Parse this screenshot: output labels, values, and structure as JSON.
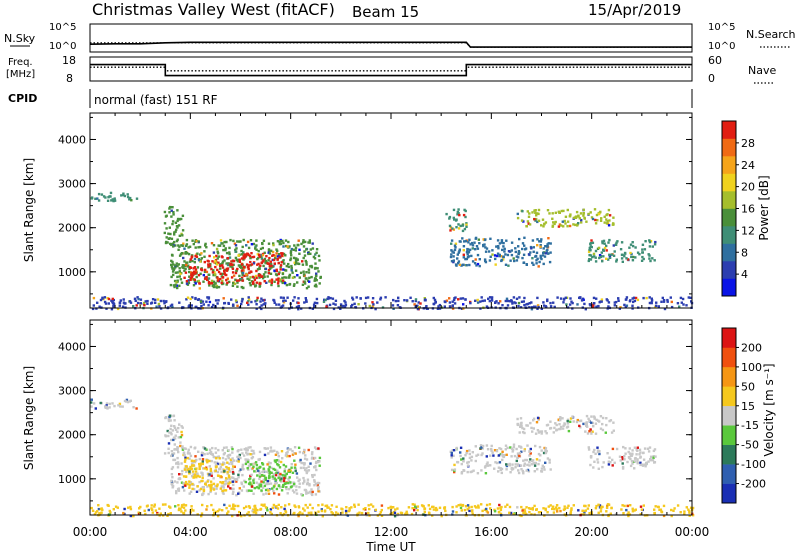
{
  "header": {
    "station": "Christmas Valley West (fitACF)",
    "beam": "Beam 15",
    "date": "15/Apr/2019"
  },
  "top_panels": {
    "nsky_label": "N.Sky",
    "nsearch_label": "N.Search",
    "noise_left_ticks": [
      "10^5",
      "10^0"
    ],
    "noise_right_ticks": [
      "10^5",
      "10^0"
    ],
    "freq_label_1": "Freq.",
    "freq_label_2": "[MHz]",
    "freq_left_ticks": [
      "18",
      "8"
    ],
    "nave_label": "Nave",
    "nave_right_ticks": [
      "60",
      "0"
    ],
    "cpid_label": "CPID",
    "cpid_value": "normal (fast) 151 RF"
  },
  "chart_data": [
    {
      "type": "line",
      "name": "noise",
      "series": [
        {
          "name": "N.Sky",
          "style": "solid",
          "x": [
            "00:00",
            "01:00",
            "02:00",
            "03:00",
            "04:00",
            "08:00",
            "12:00",
            "15:00",
            "15:10",
            "20:00",
            "24:00"
          ],
          "values": [
            1.2,
            1.3,
            1.3,
            1.5,
            1.6,
            1.6,
            1.6,
            1.6,
            0.6,
            0.6,
            0.6
          ]
        },
        {
          "name": "N.Search",
          "style": "dotted",
          "x": [
            "00:00",
            "15:00",
            "15:10",
            "24:00"
          ],
          "values": [
            1.5,
            1.5,
            0.6,
            0.6
          ]
        }
      ],
      "ylim": [
        0,
        5
      ],
      "y_scale": "log10"
    },
    {
      "type": "line",
      "name": "frequency_nave",
      "series": [
        {
          "name": "Freq.",
          "style": "solid",
          "axis": "left",
          "x": [
            "00:00",
            "03:00",
            "03:00",
            "15:00",
            "15:00",
            "24:00"
          ],
          "values": [
            15,
            15,
            10,
            10,
            15,
            15
          ]
        },
        {
          "name": "Nave",
          "style": "dotted",
          "axis": "right",
          "x": [
            "00:00",
            "03:00",
            "03:00",
            "15:00",
            "15:00",
            "24:00"
          ],
          "values": [
            35,
            35,
            25,
            25,
            35,
            35
          ]
        }
      ],
      "ylim_left": [
        8,
        18
      ],
      "ylim_right": [
        0,
        60
      ]
    },
    {
      "type": "heatmap",
      "name": "power",
      "ylabel": "Slant Range [km]",
      "yticks": [
        "1000",
        "2000",
        "3000",
        "4000"
      ],
      "ylim": [
        180,
        4600
      ],
      "colorbar_label": "Power [dB]",
      "colorbar_ticks": [
        "4",
        "8",
        "12",
        "16",
        "20",
        "24",
        "28"
      ],
      "colorbar_colors": [
        "#0a14e6",
        "#2c3eb0",
        "#2f6f9f",
        "#3f8e76",
        "#4a8f3a",
        "#a5be2c",
        "#f0d21e",
        "#f5a41a",
        "#f06a14",
        "#e11e12"
      ],
      "regions": [
        {
          "start": "00:00",
          "end": "01:50",
          "range_min": 2620,
          "range_max": 2820,
          "level": "#3f8e76"
        },
        {
          "start": "02:55",
          "end": "03:40",
          "range_min": 1600,
          "range_max": 2500,
          "level": "#4a8f3a"
        },
        {
          "start": "03:10",
          "end": "09:10",
          "range_min": 650,
          "range_max": 1750,
          "level": "#4a8f3a"
        },
        {
          "start": "03:40",
          "end": "07:40",
          "range_min": 750,
          "range_max": 1450,
          "level": "#e11e12"
        },
        {
          "start": "14:10",
          "end": "15:00",
          "range_min": 1950,
          "range_max": 2450,
          "level": "#3f8e76"
        },
        {
          "start": "14:20",
          "end": "18:20",
          "range_min": 1150,
          "range_max": 1800,
          "level": "#2f6f9f"
        },
        {
          "start": "17:00",
          "end": "20:50",
          "range_min": 2050,
          "range_max": 2450,
          "level": "#a5be2c"
        },
        {
          "start": "19:50",
          "end": "22:30",
          "range_min": 1250,
          "range_max": 1750,
          "level": "#3f8e76"
        },
        {
          "start": "00:00",
          "end": "24:00",
          "range_min": 180,
          "range_max": 450,
          "level": "#2c3eb0"
        }
      ]
    },
    {
      "type": "heatmap",
      "name": "velocity",
      "ylabel": "Slant Range [km]",
      "yticks": [
        "1000",
        "2000",
        "3000",
        "4000"
      ],
      "ylim": [
        180,
        4600
      ],
      "colorbar_label": "Velocity [m s⁻¹]",
      "colorbar_ticks": [
        "200",
        "100",
        "50",
        "15",
        "-15",
        "-50",
        "-100",
        "-200"
      ],
      "colorbar_colors": [
        "#1a2fb4",
        "#2f5fb0",
        "#2c7a5a",
        "#5ac83c",
        "#c8c8c8",
        "#f5c81e",
        "#f59614",
        "#f0500f",
        "#dc1414"
      ],
      "regions": [
        {
          "start": "00:00",
          "end": "01:50",
          "range_min": 2620,
          "range_max": 2820,
          "level": "#c8c8c8"
        },
        {
          "start": "02:55",
          "end": "03:40",
          "range_min": 1600,
          "range_max": 2500,
          "level": "#c8c8c8"
        },
        {
          "start": "03:10",
          "end": "09:10",
          "range_min": 650,
          "range_max": 1750,
          "level": "#c8c8c8"
        },
        {
          "start": "03:40",
          "end": "05:40",
          "range_min": 750,
          "range_max": 1500,
          "level": "#f5c81e"
        },
        {
          "start": "06:10",
          "end": "08:10",
          "range_min": 750,
          "range_max": 1450,
          "level": "#5ac83c"
        },
        {
          "start": "14:20",
          "end": "18:20",
          "range_min": 1150,
          "range_max": 1800,
          "level": "#c8c8c8"
        },
        {
          "start": "17:00",
          "end": "20:50",
          "range_min": 2050,
          "range_max": 2450,
          "level": "#c8c8c8"
        },
        {
          "start": "19:50",
          "end": "22:30",
          "range_min": 1250,
          "range_max": 1750,
          "level": "#c8c8c8"
        },
        {
          "start": "00:00",
          "end": "24:00",
          "range_min": 180,
          "range_max": 450,
          "level": "#f5c81e"
        }
      ]
    }
  ],
  "x_axis": {
    "ticks": [
      "00:00",
      "04:00",
      "08:00",
      "12:00",
      "16:00",
      "20:00",
      "00:00"
    ],
    "label": "Time UT"
  }
}
